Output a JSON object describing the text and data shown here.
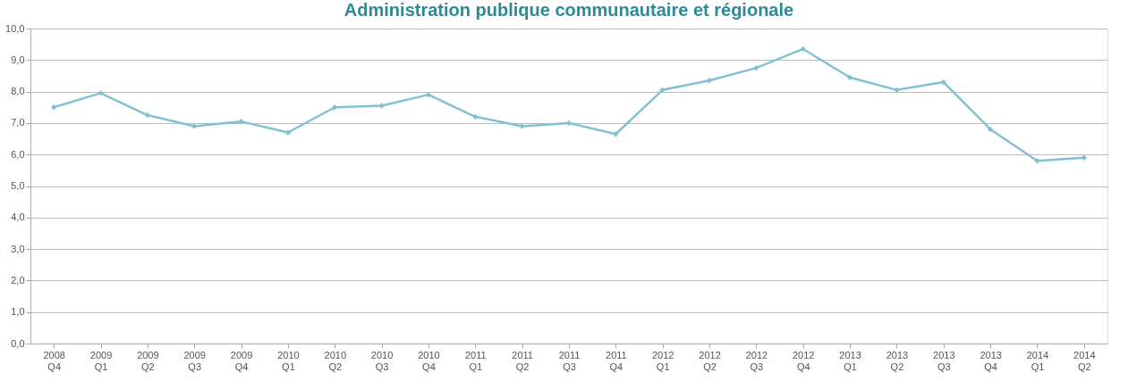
{
  "chart_data": {
    "type": "line",
    "title": "Administration publique communautaire et régionale",
    "categories": [
      "2008\nQ4",
      "2009\nQ1",
      "2009\nQ2",
      "2009\nQ3",
      "2009\nQ4",
      "2010\nQ1",
      "2010\nQ2",
      "2010\nQ3",
      "2010\nQ4",
      "2011\nQ1",
      "2011\nQ2",
      "2011\nQ3",
      "2011\nQ4",
      "2012\nQ1",
      "2012\nQ2",
      "2012\nQ3",
      "2012\nQ4",
      "2013\nQ1",
      "2013\nQ2",
      "2013\nQ3",
      "2013\nQ4",
      "2014\nQ1",
      "2014\nQ2"
    ],
    "series": [
      {
        "color": "#82c0d4",
        "values": [
          7.5,
          7.95,
          7.25,
          6.9,
          7.05,
          6.7,
          7.5,
          7.55,
          7.9,
          7.2,
          6.9,
          7.0,
          6.65,
          8.05,
          8.35,
          8.75,
          9.35,
          8.45,
          8.05,
          8.3,
          6.8,
          5.8,
          5.9
        ]
      }
    ],
    "ylim": [
      0,
      10
    ],
    "yticks": [
      {
        "value": 0,
        "label": "0,0"
      },
      {
        "value": 1,
        "label": "1,0"
      },
      {
        "value": 2,
        "label": "2,0"
      },
      {
        "value": 3,
        "label": "3,0"
      },
      {
        "value": 4,
        "label": "4,0"
      },
      {
        "value": 5,
        "label": "5,0"
      },
      {
        "value": 6,
        "label": "6,0"
      },
      {
        "value": 7,
        "label": "7,0"
      },
      {
        "value": 8,
        "label": "8,0"
      },
      {
        "value": 9,
        "label": "9,0"
      },
      {
        "value": 10,
        "label": "10,0"
      }
    ],
    "grid": "y",
    "marker": "diamond",
    "line_style": "solid"
  }
}
